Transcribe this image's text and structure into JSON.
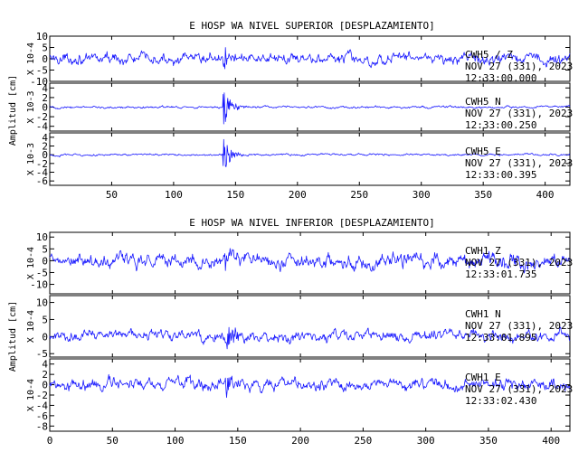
{
  "chart_data": [
    {
      "type": "line",
      "title": "E HOSP WA NIVEL SUPERIOR [DESPLAZAMIENTO]",
      "ylabel": "Amplitud [cm]",
      "xlim": [
        0,
        420
      ],
      "x_ticks": [
        50,
        100,
        150,
        200,
        250,
        300,
        350,
        400
      ],
      "grid": false,
      "event_x": 140,
      "series": [
        {
          "name": "CWH5 Z",
          "scale_label": "X 10-4",
          "station_lines": [
            "CWH5 / Z",
            "NOV 27 (331), 2023",
            "12:33:00.000"
          ],
          "ylim": [
            -10,
            10
          ],
          "y_ticks": [
            -10,
            -5,
            0,
            5,
            10
          ],
          "y_tick_labels": [
            "-10",
            "-5",
            "0",
            "5",
            "10"
          ],
          "base_amplitude": 4.5,
          "event_amplitude": 9,
          "event_decay": 3,
          "color": "#1a1aff"
        },
        {
          "name": "CWH5 N",
          "scale_label": "X 10-3",
          "station_lines": [
            "CWH5   N",
            "NOV 27 (331), 2023",
            "12:33:00.250"
          ],
          "ylim": [
            -5,
            5
          ],
          "y_ticks": [
            -4,
            -2,
            0,
            2,
            4
          ],
          "y_tick_labels": [
            "-4",
            "-2",
            "0",
            "2",
            "4"
          ],
          "base_amplitude": 0.45,
          "event_amplitude": 4.8,
          "event_decay": 5,
          "color": "#1a1aff"
        },
        {
          "name": "CWH5 E",
          "scale_label": "X 10-3",
          "station_lines": [
            "CWH5   E",
            "NOV 27 (331), 2023",
            "12:33:00.395"
          ],
          "ylim": [
            -7,
            5
          ],
          "y_ticks": [
            -6,
            -4,
            -2,
            0,
            2,
            4
          ],
          "y_tick_labels": [
            "-6",
            "-4",
            "-2",
            "0",
            "2",
            "4"
          ],
          "base_amplitude": 0.45,
          "event_amplitude": 4.8,
          "event_decay": 5,
          "color": "#1a1aff"
        }
      ]
    },
    {
      "type": "line",
      "title": "E HOSP WA NIVEL INFERIOR [DESPLAZAMIENTO]",
      "ylabel": "Amplitud [cm]",
      "xlim": [
        0,
        415
      ],
      "x_ticks": [
        0,
        50,
        100,
        150,
        200,
        250,
        300,
        350,
        400
      ],
      "grid": false,
      "event_x": 140,
      "series": [
        {
          "name": "CWH1 Z",
          "scale_label": "X 10-4",
          "station_lines": [
            "CWH1   Z",
            "NOV 27 (331), 2023",
            "12:33:01.735"
          ],
          "ylim": [
            -14,
            12
          ],
          "y_ticks": [
            -10,
            -5,
            0,
            5,
            10
          ],
          "y_tick_labels": [
            "-10",
            "-5",
            "0",
            "5",
            "10"
          ],
          "base_amplitude": 6,
          "event_amplitude": 8,
          "event_decay": 3,
          "color": "#1a1aff"
        },
        {
          "name": "CWH1 N",
          "scale_label": "X 10-4",
          "station_lines": [
            "CWH1   N",
            "NOV 27 (331), 2023",
            "12:33:01.895"
          ],
          "ylim": [
            -6,
            12
          ],
          "y_ticks": [
            -5,
            0,
            5,
            10
          ],
          "y_tick_labels": [
            "-5",
            "0",
            "5",
            "10"
          ],
          "base_amplitude": 3.2,
          "event_amplitude": 7,
          "event_decay": 5,
          "color": "#1a1aff"
        },
        {
          "name": "CWH1 E",
          "scale_label": "X 10-4",
          "station_lines": [
            "CWH1   E",
            "NOV 27 (331), 2023",
            "12:33:02.430"
          ],
          "ylim": [
            -9,
            5
          ],
          "y_ticks": [
            -8,
            -6,
            -4,
            -2,
            0,
            2,
            4
          ],
          "y_tick_labels": [
            "-8",
            "-6",
            "-4",
            "-2",
            "0",
            "2",
            "4"
          ],
          "base_amplitude": 2.2,
          "event_amplitude": 3.5,
          "event_decay": 3,
          "color": "#1a1aff"
        }
      ]
    }
  ]
}
